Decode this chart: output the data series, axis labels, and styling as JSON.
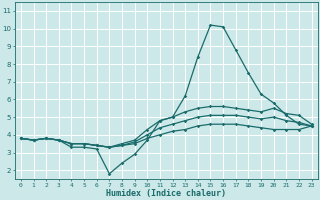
{
  "xlabel": "Humidex (Indice chaleur)",
  "ylabel": "",
  "background_color": "#cce8e8",
  "grid_color": "#ffffff",
  "line_color": "#1a6b6b",
  "x_values": [
    0,
    1,
    2,
    3,
    4,
    5,
    6,
    7,
    8,
    9,
    10,
    11,
    12,
    13,
    14,
    15,
    16,
    17,
    18,
    19,
    20,
    21,
    22,
    23
  ],
  "line1": [
    3.8,
    3.7,
    3.8,
    3.7,
    3.3,
    3.3,
    3.2,
    1.8,
    2.4,
    2.9,
    3.7,
    4.8,
    5.0,
    6.2,
    8.4,
    10.2,
    10.1,
    8.8,
    7.5,
    6.3,
    5.8,
    5.1,
    4.6,
    4.5
  ],
  "line2": [
    3.8,
    3.7,
    3.8,
    3.7,
    3.5,
    3.5,
    3.4,
    3.3,
    3.5,
    3.7,
    4.3,
    4.8,
    5.0,
    5.3,
    5.5,
    5.6,
    5.6,
    5.5,
    5.4,
    5.3,
    5.5,
    5.2,
    5.1,
    4.6
  ],
  "line3": [
    3.8,
    3.7,
    3.8,
    3.7,
    3.5,
    3.5,
    3.4,
    3.3,
    3.4,
    3.6,
    4.0,
    4.4,
    4.6,
    4.8,
    5.0,
    5.1,
    5.1,
    5.1,
    5.0,
    4.9,
    5.0,
    4.8,
    4.7,
    4.5
  ],
  "line4": [
    3.8,
    3.7,
    3.8,
    3.7,
    3.5,
    3.5,
    3.4,
    3.3,
    3.4,
    3.5,
    3.8,
    4.0,
    4.2,
    4.3,
    4.5,
    4.6,
    4.6,
    4.6,
    4.5,
    4.4,
    4.3,
    4.3,
    4.3,
    4.5
  ],
  "ylim": [
    1.5,
    11.5
  ],
  "xlim": [
    -0.5,
    23.5
  ],
  "yticks": [
    2,
    3,
    4,
    5,
    6,
    7,
    8,
    9,
    10,
    11
  ],
  "xticks": [
    0,
    1,
    2,
    3,
    4,
    5,
    6,
    7,
    8,
    9,
    10,
    11,
    12,
    13,
    14,
    15,
    16,
    17,
    18,
    19,
    20,
    21,
    22,
    23
  ]
}
